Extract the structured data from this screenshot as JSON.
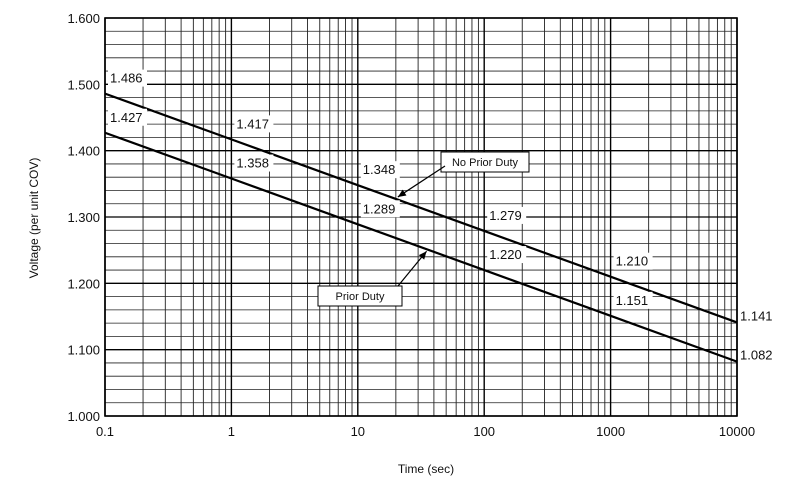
{
  "chart_data": {
    "type": "line",
    "xlabel": "Time (sec)",
    "ylabel": "Voltage (per unit COV)",
    "xscale": "log",
    "xlim": [
      0.1,
      10000
    ],
    "ylim": [
      1.0,
      1.6
    ],
    "grid": true,
    "x_ticks": [
      "0.1",
      "1",
      "10",
      "100",
      "1000",
      "10000"
    ],
    "y_ticks": [
      "1.000",
      "1.100",
      "1.200",
      "1.300",
      "1.400",
      "1.500",
      "1.600"
    ],
    "series": [
      {
        "name": "No Prior Duty",
        "x": [
          0.1,
          1,
          10,
          100,
          1000,
          10000
        ],
        "values": [
          1.486,
          1.417,
          1.348,
          1.279,
          1.21,
          1.141
        ],
        "labels": [
          "1.486",
          "1.417",
          "1.348",
          "1.279",
          "1.210",
          "1.141"
        ]
      },
      {
        "name": "Prior Duty",
        "x": [
          0.1,
          1,
          10,
          100,
          1000,
          10000
        ],
        "values": [
          1.427,
          1.358,
          1.289,
          1.22,
          1.151,
          1.082
        ],
        "labels": [
          "1.427",
          "1.358",
          "1.289",
          "1.220",
          "1.151",
          "1.082"
        ]
      }
    ]
  }
}
